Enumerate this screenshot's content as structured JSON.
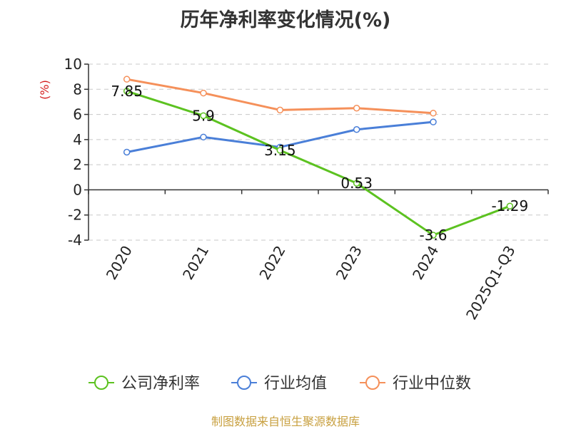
{
  "source": "制图数据来自恒生聚源数据库",
  "chart_data": {
    "type": "line",
    "title": "历年净利率变化情况(%)",
    "ylabel": "(%)",
    "xlabel": "",
    "categories": [
      "2020",
      "2021",
      "2022",
      "2023",
      "2024",
      "2025Q1-Q3"
    ],
    "ylim": [
      -4,
      10
    ],
    "yticks": [
      -4,
      -2,
      0,
      2,
      4,
      6,
      8,
      10
    ],
    "ytick_labels": [
      "-4",
      "-2",
      "0",
      "2",
      "4",
      "6",
      "8",
      "10"
    ],
    "grid": true,
    "legend_position": "bottom",
    "series": [
      {
        "name": "公司净利率",
        "color": "#5cc220",
        "values": [
          7.85,
          5.9,
          3.15,
          0.53,
          -3.6,
          -1.29
        ],
        "labels": [
          "7.85",
          "5.9",
          "3.15",
          "0.53",
          "-3.6",
          "-1.29"
        ]
      },
      {
        "name": "行业均值",
        "color": "#4a7fd8",
        "values": [
          3.0,
          4.2,
          3.4,
          4.8,
          5.4,
          null
        ],
        "labels": null
      },
      {
        "name": "行业中位数",
        "color": "#f5905a",
        "values": [
          8.8,
          7.7,
          6.35,
          6.5,
          6.1,
          null
        ],
        "labels": null
      }
    ]
  }
}
